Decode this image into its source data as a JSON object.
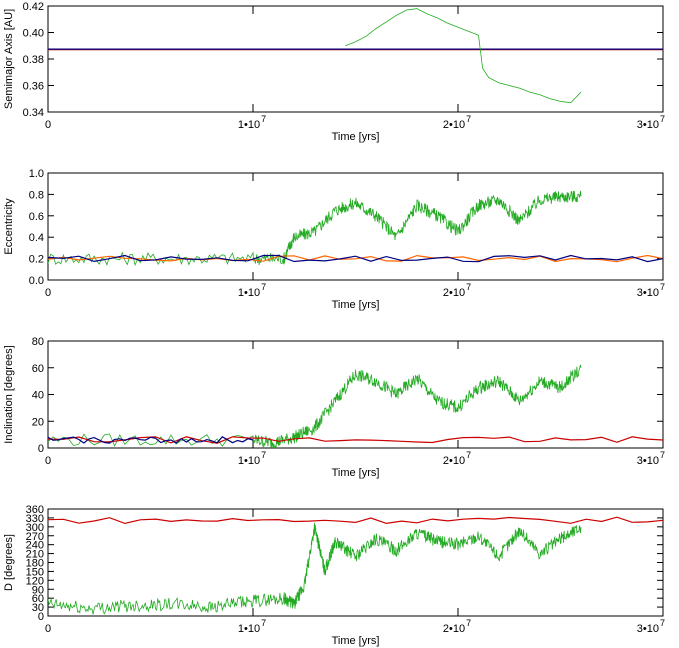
{
  "chart_data": [
    {
      "type": "line",
      "ylabel": "Semimajor Axis [AU]",
      "xlabel": "Time [yrs]",
      "xlim": [
        0,
        30000000
      ],
      "ylim": [
        0.34,
        0.42
      ],
      "x_ticks": [
        {
          "value": 0,
          "mantissa": "0",
          "exp": ""
        },
        {
          "value": 10000000,
          "mantissa": "1•10",
          "exp": "7"
        },
        {
          "value": 20000000,
          "mantissa": "2•10",
          "exp": "7"
        },
        {
          "value": 30000000,
          "mantissa": "3•10",
          "exp": "7"
        }
      ],
      "y_ticks": [
        "0.34",
        "0.36",
        "0.38",
        "0.40",
        "0.42"
      ],
      "grid": false,
      "series": [
        {
          "color": "#cc0000",
          "x": [
            0,
            30000000
          ],
          "y": [
            0.387,
            0.387
          ]
        },
        {
          "color": "#000080",
          "x": [
            0,
            30000000
          ],
          "y": [
            0.3875,
            0.3875
          ]
        },
        {
          "color": "#22aa22",
          "x": [
            14500000,
            15000000,
            15500000,
            16000000,
            16500000,
            17000000,
            17500000,
            18000000,
            18500000,
            19000000,
            19500000,
            20000000,
            20500000,
            21000000,
            21200000,
            21500000,
            22000000,
            22500000,
            23000000,
            23500000,
            24000000,
            24500000,
            25000000,
            25500000,
            26000000
          ],
          "y": [
            0.39,
            0.393,
            0.397,
            0.403,
            0.408,
            0.413,
            0.417,
            0.418,
            0.414,
            0.411,
            0.407,
            0.404,
            0.401,
            0.398,
            0.373,
            0.366,
            0.362,
            0.36,
            0.358,
            0.355,
            0.353,
            0.35,
            0.348,
            0.347,
            0.355
          ]
        }
      ]
    },
    {
      "type": "line",
      "ylabel": "Eccentricity",
      "xlabel": "Time [yrs]",
      "xlim": [
        0,
        30000000
      ],
      "ylim": [
        0,
        1.0
      ],
      "x_ticks": [
        {
          "value": 0,
          "mantissa": "0",
          "exp": ""
        },
        {
          "value": 10000000,
          "mantissa": "1•10",
          "exp": "7"
        },
        {
          "value": 20000000,
          "mantissa": "2•10",
          "exp": "7"
        },
        {
          "value": 30000000,
          "mantissa": "3•10",
          "exp": "7"
        }
      ],
      "y_ticks": [
        "0.0",
        "0.2",
        "0.4",
        "0.6",
        "0.8",
        "1.0"
      ],
      "grid": false,
      "series": [
        {
          "color": "#22aa22",
          "x": [
            0,
            5000000,
            10000000,
            11500000,
            12000000,
            13000000,
            14000000,
            15000000,
            16000000,
            17000000,
            18000000,
            19000000,
            20000000,
            21000000,
            22000000,
            23000000,
            24000000,
            25000000,
            26000000
          ],
          "y": [
            0.2,
            0.2,
            0.2,
            0.2,
            0.4,
            0.45,
            0.65,
            0.72,
            0.6,
            0.4,
            0.7,
            0.6,
            0.45,
            0.7,
            0.75,
            0.55,
            0.75,
            0.78,
            0.78
          ]
        },
        {
          "color": "#ff6600",
          "x": [
            0,
            30000000
          ],
          "y": [
            0.2,
            0.2
          ]
        },
        {
          "color": "#000080",
          "x": [
            0,
            30000000
          ],
          "y": [
            0.2,
            0.2
          ]
        }
      ]
    },
    {
      "type": "line",
      "ylabel": "Inclination [degrees]",
      "xlabel": "Time [yrs]",
      "xlim": [
        0,
        30000000
      ],
      "ylim": [
        0,
        80
      ],
      "x_ticks": [
        {
          "value": 0,
          "mantissa": "0",
          "exp": ""
        },
        {
          "value": 10000000,
          "mantissa": "1•10",
          "exp": "7"
        },
        {
          "value": 20000000,
          "mantissa": "2•10",
          "exp": "7"
        },
        {
          "value": 30000000,
          "mantissa": "3•10",
          "exp": "7"
        }
      ],
      "y_ticks": [
        "0",
        "20",
        "40",
        "60",
        "80"
      ],
      "grid": false,
      "series": [
        {
          "color": "#22aa22",
          "x": [
            0,
            10000000,
            11000000,
            12000000,
            13000000,
            14000000,
            15000000,
            16000000,
            17000000,
            18000000,
            19000000,
            20000000,
            21000000,
            22000000,
            23000000,
            24000000,
            25000000,
            26000000
          ],
          "y": [
            6,
            6,
            4,
            8,
            15,
            35,
            55,
            50,
            40,
            52,
            35,
            30,
            45,
            50,
            35,
            50,
            45,
            60
          ]
        },
        {
          "color": "#cc0000",
          "x": [
            0,
            30000000
          ],
          "y": [
            6,
            6
          ]
        },
        {
          "color": "#000080",
          "x": [
            0,
            10000000
          ],
          "y": [
            6,
            6
          ]
        }
      ]
    },
    {
      "type": "line",
      "ylabel": "D [degrees]",
      "xlabel": "Time [yrs]",
      "xlim": [
        0,
        30000000
      ],
      "ylim": [
        0,
        360
      ],
      "x_ticks": [
        {
          "value": 0,
          "mantissa": "0",
          "exp": ""
        },
        {
          "value": 10000000,
          "mantissa": "1•10",
          "exp": "7"
        },
        {
          "value": 20000000,
          "mantissa": "2•10",
          "exp": "7"
        },
        {
          "value": 30000000,
          "mantissa": "3•10",
          "exp": "7"
        }
      ],
      "y_ticks": [
        "0",
        "30",
        "60",
        "90",
        "120",
        "150",
        "180",
        "210",
        "240",
        "270",
        "300",
        "330",
        "360"
      ],
      "grid": false,
      "series": [
        {
          "color": "#cc0000",
          "x": [
            0,
            30000000
          ],
          "y": [
            322,
            322
          ]
        },
        {
          "color": "#22aa22",
          "x": [
            0,
            2000000,
            4000000,
            6000000,
            8000000,
            10000000,
            11500000,
            12000000,
            12500000,
            13000000,
            13500000,
            14000000,
            15000000,
            16000000,
            17000000,
            18000000,
            19000000,
            20000000,
            21000000,
            22000000,
            23000000,
            24000000,
            25000000,
            26000000
          ],
          "y": [
            40,
            25,
            35,
            40,
            30,
            50,
            60,
            40,
            100,
            300,
            150,
            250,
            200,
            260,
            220,
            280,
            250,
            240,
            270,
            200,
            290,
            210,
            260,
            300
          ]
        }
      ]
    }
  ]
}
